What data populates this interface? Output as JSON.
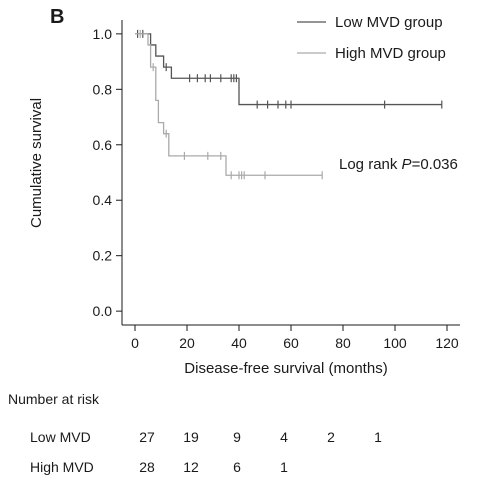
{
  "panel_label": "B",
  "chart_data": {
    "type": "line",
    "subtype": "kaplan-meier",
    "title": "",
    "xlabel": "Disease-free survival (months)",
    "ylabel": "Cumulative survival",
    "xlim": [
      -5,
      125
    ],
    "ylim": [
      -0.05,
      1.05
    ],
    "x_ticks": [
      0,
      20,
      40,
      60,
      80,
      100,
      120
    ],
    "y_ticks": [
      0.0,
      0.2,
      0.4,
      0.6,
      0.8,
      1.0
    ],
    "x_tick_labels": [
      "0",
      "20",
      "40",
      "60",
      "80",
      "100",
      "120"
    ],
    "y_tick_labels": [
      "0.0",
      "0.2",
      "0.4",
      "0.6",
      "0.8",
      "1.0"
    ],
    "grid": false,
    "legend_position": "top-right",
    "annotation": {
      "prefix": "Log rank ",
      "italic": "P",
      "suffix": "=0.036"
    },
    "series": [
      {
        "name": "Low MVD group",
        "color": "#555555",
        "steps": [
          [
            0,
            1.0
          ],
          [
            6,
            0.96
          ],
          [
            8,
            0.92
          ],
          [
            11,
            0.88
          ],
          [
            14,
            0.84
          ],
          [
            40,
            0.745
          ],
          [
            118,
            0.745
          ]
        ],
        "censored": [
          [
            1,
            1.0
          ],
          [
            3,
            1.0
          ],
          [
            12,
            0.88
          ],
          [
            21,
            0.84
          ],
          [
            24,
            0.84
          ],
          [
            27,
            0.84
          ],
          [
            29,
            0.84
          ],
          [
            33,
            0.84
          ],
          [
            37,
            0.84
          ],
          [
            38,
            0.84
          ],
          [
            39,
            0.84
          ],
          [
            47,
            0.745
          ],
          [
            51,
            0.745
          ],
          [
            55,
            0.745
          ],
          [
            58,
            0.745
          ],
          [
            60,
            0.745
          ],
          [
            96,
            0.745
          ],
          [
            118,
            0.745
          ]
        ]
      },
      {
        "name": "High MVD group",
        "color": "#aaaaaa",
        "steps": [
          [
            0,
            1.0
          ],
          [
            5,
            0.96
          ],
          [
            6,
            0.88
          ],
          [
            8,
            0.76
          ],
          [
            9,
            0.68
          ],
          [
            11,
            0.64
          ],
          [
            13,
            0.56
          ],
          [
            35,
            0.49
          ],
          [
            72,
            0.49
          ]
        ],
        "censored": [
          [
            2,
            1.0
          ],
          [
            7,
            0.88
          ],
          [
            12,
            0.64
          ],
          [
            19,
            0.56
          ],
          [
            28,
            0.56
          ],
          [
            33,
            0.56
          ],
          [
            37,
            0.49
          ],
          [
            40,
            0.49
          ],
          [
            41,
            0.49
          ],
          [
            42,
            0.49
          ],
          [
            50,
            0.49
          ],
          [
            72,
            0.49
          ]
        ]
      }
    ]
  },
  "risk_table": {
    "title": "Number at risk",
    "rows": [
      {
        "label": "Low MVD",
        "counts": [
          "27",
          "19",
          "9",
          "4",
          "2",
          "1"
        ]
      },
      {
        "label": "High MVD",
        "counts": [
          "28",
          "12",
          "6",
          "1"
        ]
      }
    ]
  }
}
